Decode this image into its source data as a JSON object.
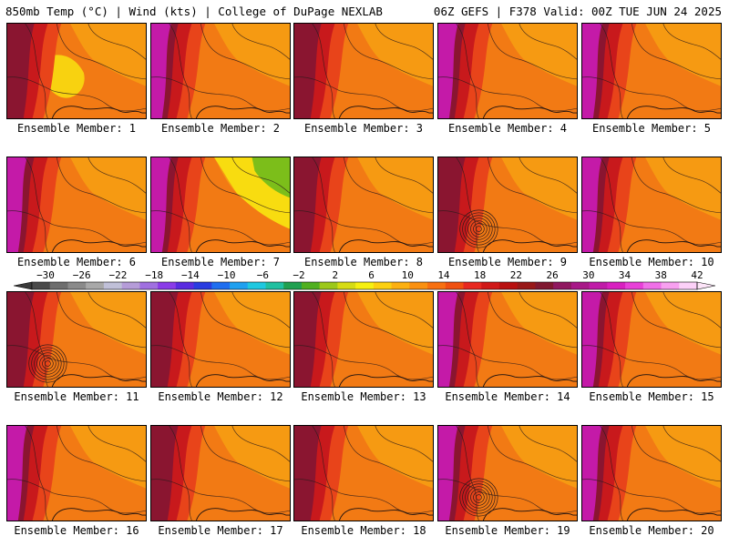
{
  "header": {
    "left": "850mb Temp (°C) | Wind (kts) | College of DuPage NEXLAB",
    "right": "06Z GEFS | F378 Valid: 00Z TUE JUN 24 2025"
  },
  "panels": [
    {
      "label": "Ensemble Member: 1",
      "style": "yellow_center",
      "low": false
    },
    {
      "label": "Ensemble Member: 2",
      "style": "magenta_west",
      "low": false
    },
    {
      "label": "Ensemble Member: 3",
      "style": "red_west",
      "low": false
    },
    {
      "label": "Ensemble Member: 4",
      "style": "magenta_west",
      "low": false
    },
    {
      "label": "Ensemble Member: 5",
      "style": "magenta_west",
      "low": false
    },
    {
      "label": "Ensemble Member: 6",
      "style": "magenta_west",
      "low": false
    },
    {
      "label": "Ensemble Member: 7",
      "style": "cool_east",
      "low": false
    },
    {
      "label": "Ensemble Member: 8",
      "style": "red_west",
      "low": false
    },
    {
      "label": "Ensemble Member: 9",
      "style": "red_west",
      "low": true
    },
    {
      "label": "Ensemble Member: 10",
      "style": "magenta_west",
      "low": false
    },
    {
      "label": "Ensemble Member: 11",
      "style": "red_west",
      "low": true
    },
    {
      "label": "Ensemble Member: 12",
      "style": "red_west",
      "low": false
    },
    {
      "label": "Ensemble Member: 13",
      "style": "red_west",
      "low": false
    },
    {
      "label": "Ensemble Member: 14",
      "style": "magenta_west",
      "low": false
    },
    {
      "label": "Ensemble Member: 15",
      "style": "magenta_west",
      "low": false
    },
    {
      "label": "Ensemble Member: 16",
      "style": "magenta_west",
      "low": false
    },
    {
      "label": "Ensemble Member: 17",
      "style": "red_west",
      "low": false
    },
    {
      "label": "Ensemble Member: 18",
      "style": "red_west",
      "low": false
    },
    {
      "label": "Ensemble Member: 19",
      "style": "magenta_west",
      "low": true
    },
    {
      "label": "Ensemble Member: 20",
      "style": "magenta_west",
      "low": false
    }
  ],
  "colorbar": {
    "ticks": [
      "−30",
      "−26",
      "−22",
      "−18",
      "−14",
      "−10",
      "−6",
      "−2",
      "2",
      "6",
      "10",
      "14",
      "18",
      "22",
      "26",
      "30",
      "34",
      "38",
      "42"
    ],
    "colors": [
      "#4a4a4a",
      "#6e6e6e",
      "#8a8a8a",
      "#a8a8a8",
      "#c0c0d8",
      "#b59cd8",
      "#a070e0",
      "#8a3ce8",
      "#5a2ce0",
      "#2a3ce0",
      "#1e6ef0",
      "#1ea0f0",
      "#1ec8e0",
      "#20c0a0",
      "#20a050",
      "#50b020",
      "#9cc81a",
      "#d6dc14",
      "#f6f010",
      "#fcd010",
      "#fcb010",
      "#fa9010",
      "#f87010",
      "#f05010",
      "#e82820",
      "#d01818",
      "#b81010",
      "#981818",
      "#801830",
      "#901860",
      "#a81888",
      "#c01ca8",
      "#d820c0",
      "#e840d8",
      "#f070e8",
      "#f8a0f0",
      "#fcd0f8"
    ]
  },
  "palette": {
    "magenta": "#c41aa8",
    "maroon": "#8a1530",
    "red": "#c8191c",
    "red_orange": "#e8441a",
    "orange": "#f27a14",
    "orange_light": "#f69a12",
    "yellow": "#f8dc10",
    "green": "#7cbe1a",
    "contour": "#2a1a1a"
  }
}
